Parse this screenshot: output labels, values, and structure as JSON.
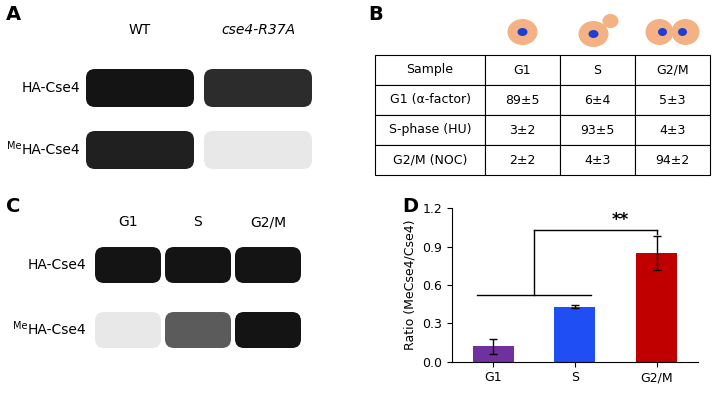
{
  "panel_labels": [
    "A",
    "B",
    "C",
    "D"
  ],
  "panels": {
    "A": {
      "columns": [
        "WT",
        "cse4-R37A"
      ],
      "rows": [
        {
          "text": "HA-Cse4",
          "intensity": [
            1.0,
            0.9
          ]
        },
        {
          "superscript": "Me",
          "text": "HA-Cse4",
          "intensity": [
            0.95,
            0.1
          ]
        }
      ]
    },
    "B": {
      "table": {
        "header": [
          "Sample",
          "G1",
          "S",
          "G2/M"
        ],
        "rows": [
          [
            "G1 (α-factor)",
            "89±5",
            "6±4",
            "5±3"
          ],
          [
            "S-phase (HU)",
            "3±2",
            "93±5",
            "4±3"
          ],
          [
            "G2/M (NOC)",
            "2±2",
            "4±3",
            "94±2"
          ]
        ]
      }
    },
    "C": {
      "columns": [
        "G1",
        "S",
        "G2/M"
      ],
      "rows": [
        {
          "text": "HA-Cse4",
          "intensity": [
            1.0,
            1.0,
            1.0
          ]
        },
        {
          "superscript": "Me",
          "text": "HA-Cse4",
          "intensity": [
            0.1,
            0.7,
            1.0
          ]
        }
      ]
    }
  },
  "chart_data": {
    "type": "bar",
    "ylabel": "Ratio (MeCse4/Cse4)",
    "categories": [
      "G1",
      "S",
      "G2/M"
    ],
    "values": [
      0.12,
      0.43,
      0.85
    ],
    "errors": [
      0.06,
      0.01,
      0.13
    ],
    "colors": [
      "#7030a0",
      "#1f4ef5",
      "#c00000"
    ],
    "ylim": [
      0,
      1.2
    ],
    "yticks": [
      0.0,
      0.3,
      0.6,
      0.9,
      1.2
    ],
    "annotations": [
      {
        "text": "**",
        "from": [
          "G1",
          "S"
        ],
        "to": "G2/M"
      }
    ]
  }
}
